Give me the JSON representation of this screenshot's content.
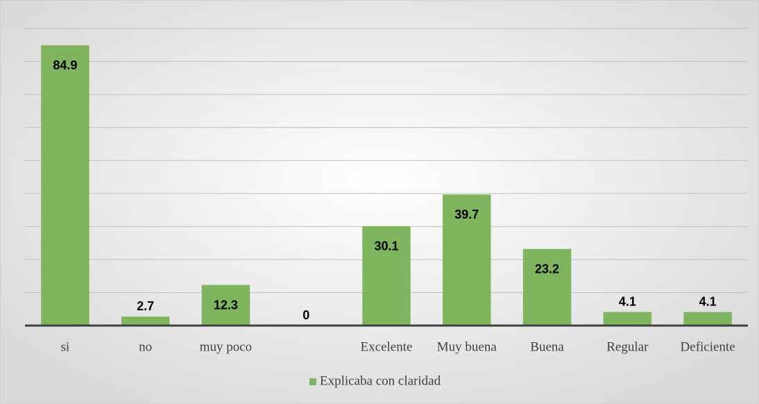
{
  "chart_data": {
    "type": "bar",
    "categories": [
      "si",
      "no",
      "muy poco",
      null,
      "Excelente",
      "Muy buena",
      "Buena",
      "Regular",
      "Deficiente"
    ],
    "series": [
      {
        "name": "Explicaba con claridad",
        "color": "#7fb55e",
        "values": [
          84.9,
          2.7,
          12.3,
          0,
          30.1,
          39.7,
          23.2,
          4.1,
          4.1
        ]
      }
    ],
    "ylim": [
      0,
      90
    ],
    "yticks": [
      0,
      10,
      20,
      30,
      40,
      50,
      60,
      70,
      80,
      90
    ],
    "grid": true,
    "legend": "bottom"
  }
}
